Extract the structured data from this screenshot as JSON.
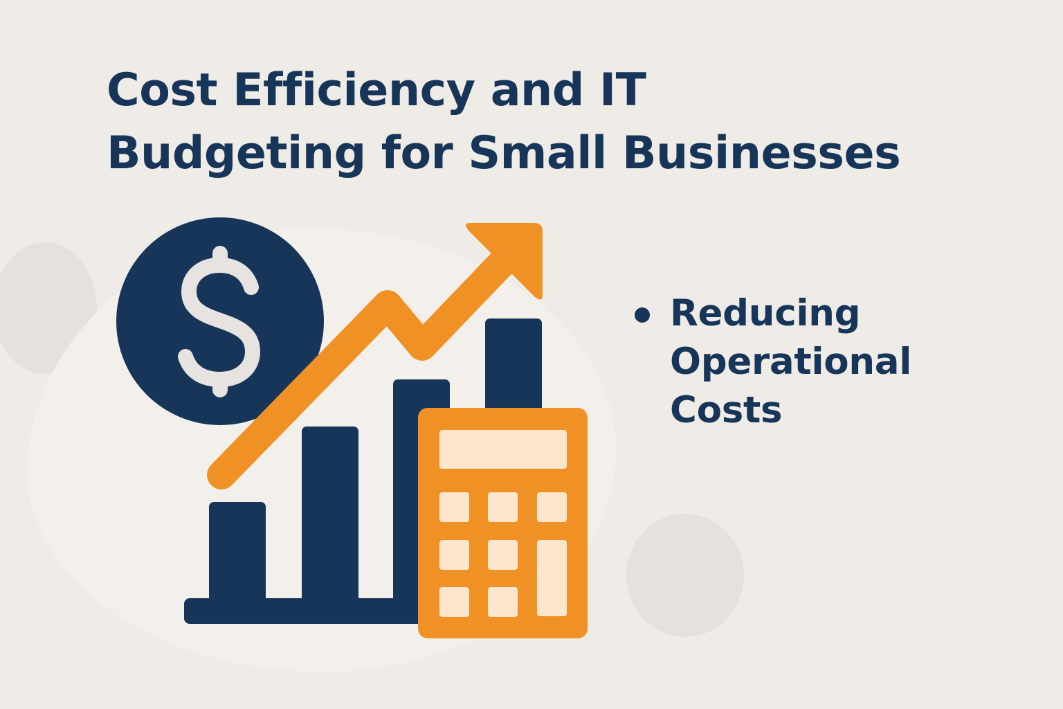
{
  "title": {
    "line1": "Cost Efficiency and IT",
    "line2": "Budgeting for Small Businesses"
  },
  "bullets": [
    {
      "text": "Reducing Operational Costs"
    }
  ],
  "illustration": {
    "icons": [
      "dollar-icon",
      "bar-chart-icon",
      "trend-arrow-icon",
      "calculator-icon"
    ],
    "dollar_symbol": "$"
  },
  "colors": {
    "background": "#efebe6",
    "navy": "#163558",
    "orange": "#ef9125",
    "cream": "#fde6cd",
    "light": "#e6e3e0"
  }
}
